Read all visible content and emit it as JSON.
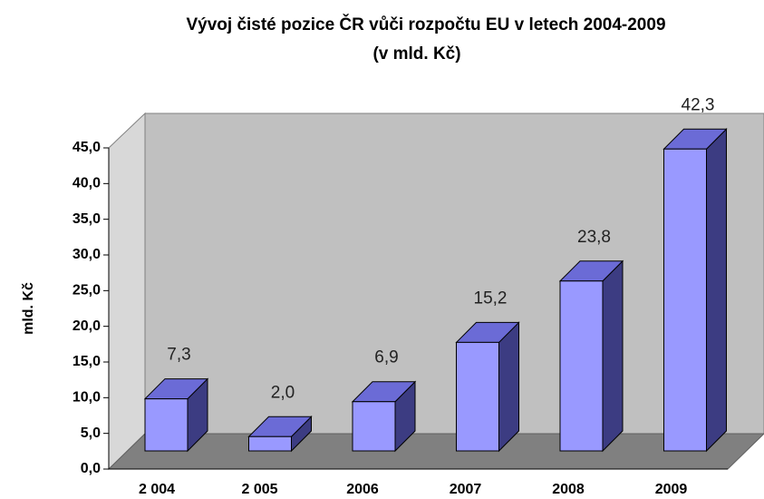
{
  "chart_data": {
    "type": "bar3d",
    "title": "Vývoj čisté pozice ČR vůči rozpočtu EU v letech 2004-2009",
    "subtitle": "(v mld. Kč)",
    "y_label": "mld. Kč",
    "categories": [
      "2 004",
      "2 005",
      "2006",
      "2007",
      "2008",
      "2009"
    ],
    "values": [
      7.3,
      2.0,
      6.9,
      15.2,
      23.8,
      42.3
    ],
    "value_labels": [
      "7,3",
      "2,0",
      "6,9",
      "15,2",
      "23,8",
      "42,3"
    ],
    "color": "#9999ff",
    "ylim": [
      0,
      45
    ],
    "yticks": [
      {
        "value": 0,
        "label": "0,0"
      },
      {
        "value": 5,
        "label": "5,0"
      },
      {
        "value": 10,
        "label": "10,0"
      },
      {
        "value": 15,
        "label": "15,0"
      },
      {
        "value": 20,
        "label": "20,0"
      },
      {
        "value": 25,
        "label": "25,0"
      },
      {
        "value": 30,
        "label": "30,0"
      },
      {
        "value": 35,
        "label": "35,0"
      },
      {
        "value": 40,
        "label": "40,0"
      },
      {
        "value": 45,
        "label": "45,0"
      }
    ]
  }
}
